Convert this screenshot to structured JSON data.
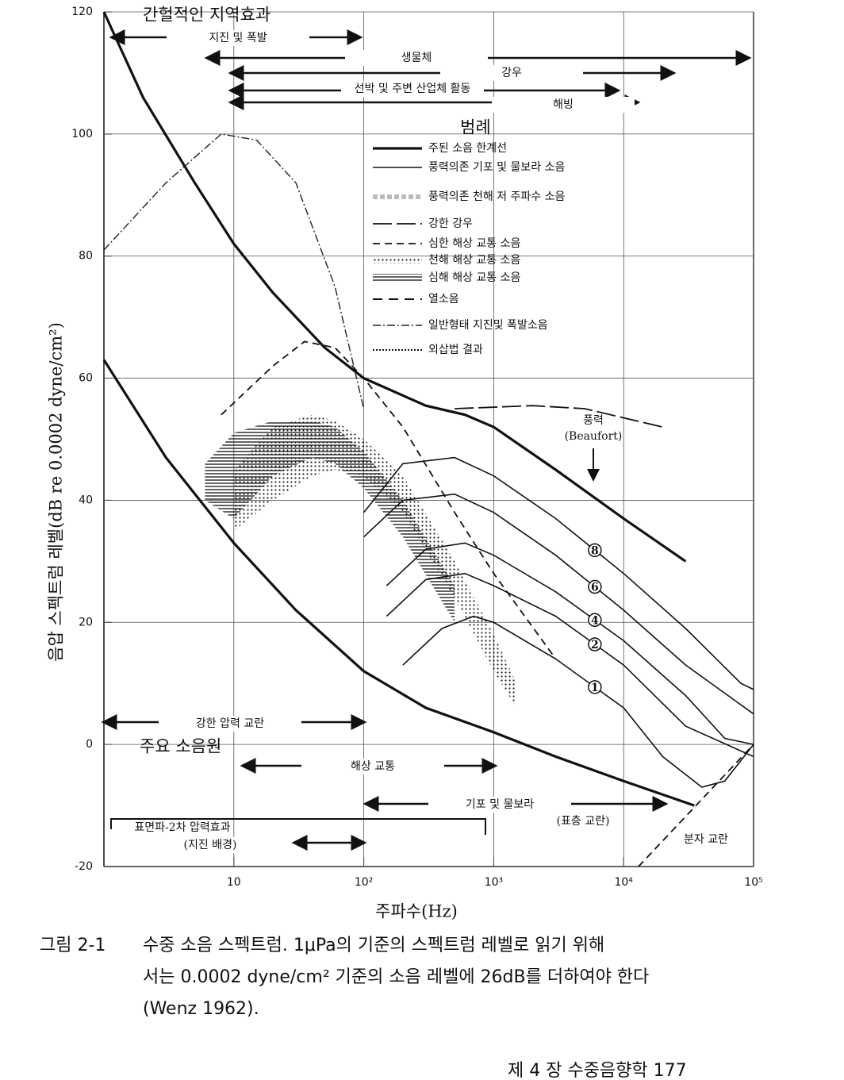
{
  "chart_data": {
    "type": "line",
    "xlabel": "주파수(Hz)",
    "ylabel": "음압 스펙트럼 레벨(dB re 0.0002 dyne/cm²)",
    "xscale": "log",
    "xlim": [
      1,
      100000
    ],
    "ylim": [
      -20,
      120
    ],
    "xticks": [
      10,
      {
        "value": 100,
        "label": "10²"
      },
      {
        "value": 1000,
        "label": "10³"
      },
      {
        "value": 10000,
        "label": "10⁴"
      },
      {
        "value": 100000,
        "label": "10⁵"
      }
    ],
    "yticks": [
      -20,
      0,
      20,
      40,
      60,
      80,
      100,
      120
    ],
    "grid": true,
    "legend_title": "범례",
    "legend": [
      "주된 소음 한계선",
      "풍력의존 기포 및 물보라 소음",
      "풍력의존 천해 저 주파수 소음",
      "강한 강우",
      "심한 해상 교통 소음",
      "천해 해상 교통 소음",
      "심해 해상 교통 소음",
      "열소음",
      "일반형태 지진및 폭발소음",
      "외삽법 결과"
    ],
    "series": [
      {
        "style": "heavy",
        "x": [
          1,
          2,
          5,
          10,
          20,
          50,
          100,
          300,
          600,
          1000,
          3000,
          10000,
          30000
        ],
        "values": [
          120,
          106,
          92,
          82,
          74,
          65,
          60,
          55.5,
          54,
          52,
          45,
          37,
          30
        ]
      },
      {
        "style": "heavy",
        "x": [
          1,
          3,
          10,
          30,
          100,
          300,
          1000,
          3000,
          10000,
          35000
        ],
        "values": [
          63,
          47,
          33,
          22,
          12,
          6,
          2,
          -2,
          -6,
          -10
        ]
      },
      {
        "style": "dashed",
        "x": [
          13000,
          100000
        ],
        "values": [
          -20,
          0
        ]
      },
      {
        "style": "dashdot",
        "x": [
          1,
          3,
          8,
          15,
          30,
          60,
          100
        ],
        "values": [
          81,
          92,
          100,
          99,
          92,
          75,
          55
        ]
      },
      {
        "style": "longdash",
        "x": [
          500,
          2000,
          5000,
          20000
        ],
        "values": [
          55,
          55.5,
          55,
          52
        ]
      },
      {
        "style": "dashed",
        "x": [
          8,
          20,
          35,
          60,
          100,
          200,
          500,
          1000,
          3000
        ],
        "values": [
          54,
          62,
          66,
          65,
          60,
          52,
          38,
          28,
          14
        ]
      },
      {
        "style": "thin",
        "label": "8",
        "x": [
          100,
          200,
          500,
          1000,
          3000,
          10000,
          30000,
          80000,
          100000
        ],
        "values": [
          38,
          46,
          47,
          44,
          37,
          28,
          19,
          10,
          9
        ]
      },
      {
        "style": "thin",
        "label": "6",
        "x": [
          100,
          200,
          500,
          1000,
          3000,
          10000,
          30000,
          100000
        ],
        "values": [
          34,
          40,
          41,
          38,
          31,
          22,
          13,
          5
        ]
      },
      {
        "style": "thin",
        "label": "4",
        "x": [
          150,
          300,
          600,
          1000,
          3000,
          10000,
          30000,
          60000,
          100000
        ],
        "values": [
          26,
          32,
          33,
          31,
          25,
          17,
          8,
          1,
          0
        ]
      },
      {
        "style": "thin",
        "label": "2",
        "x": [
          150,
          300,
          600,
          1000,
          3000,
          10000,
          30000,
          100000
        ],
        "values": [
          21,
          27,
          28,
          26,
          21,
          13,
          3,
          -2
        ]
      },
      {
        "style": "thin",
        "label": "1",
        "x": [
          200,
          400,
          700,
          1000,
          3000,
          10000,
          20000,
          40000,
          60000,
          100000
        ],
        "values": [
          13,
          19,
          21,
          20,
          14,
          6,
          -2,
          -7,
          -6,
          0
        ]
      }
    ],
    "bands": [
      {
        "style": "hatch",
        "x": [
          6,
          10,
          20,
          40,
          60,
          100,
          200,
          500
        ],
        "upper": [
          46,
          51,
          53,
          53,
          52,
          48,
          40,
          26
        ],
        "lower": [
          40,
          37,
          44,
          47,
          46,
          42,
          34,
          20
        ]
      },
      {
        "style": "dots",
        "x": [
          10,
          20,
          40,
          60,
          100,
          200,
          500,
          1000,
          1500
        ],
        "upper": [
          45,
          52,
          54,
          53,
          50,
          44,
          30,
          18,
          10
        ],
        "lower": [
          35,
          40,
          44,
          45,
          44,
          38,
          24,
          12,
          6
        ]
      }
    ],
    "wind_title": "풍력",
    "wind_unit": "(Beaufort)",
    "annotations": [
      "간헐적인 지역효과",
      "지진 및 폭발",
      "생물체",
      "강우",
      "선박 및 주변 산업체 활동",
      "해빙",
      "강한 압력 교란",
      "주요 소음원",
      "해상 교통",
      "기포 및 물보라",
      "(표층 교란)",
      "표면파-2차 압력효과",
      "(지진 배경)",
      "분자 교란"
    ]
  },
  "caption": {
    "label": "그림 2-1",
    "lines": [
      "수중 소음 스펙트럼. 1μPa의 기준의 스펙트럼 레벨로 읽기 위해",
      "서는 0.0002 dyne/cm² 기준의 소음 레벨에 26dB를 더하여야 한다",
      "(Wenz 1962)."
    ]
  },
  "footer": "제 4 장 수중음향학 177"
}
